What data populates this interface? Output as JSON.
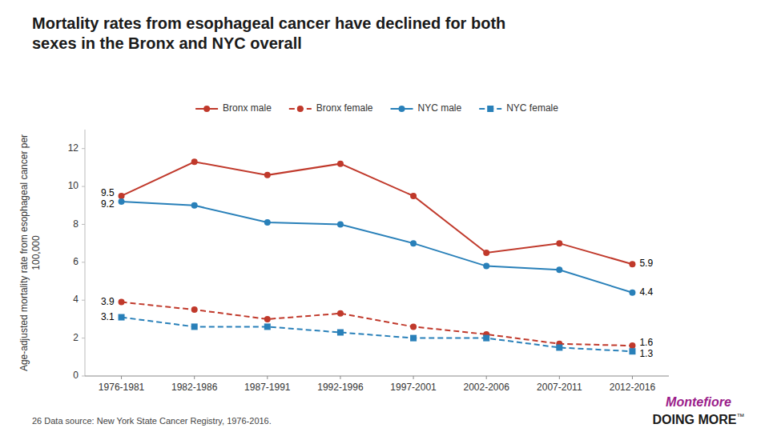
{
  "chart_data": {
    "type": "line",
    "title": "Mortality rates from esophageal cancer have declined for both\nsexes in the Bronx and NYC overall",
    "y_label": "Age-adjusted mortality rate from esophageal cancer per\n100,000",
    "categories": [
      "1976-1981",
      "1982-1986",
      "1987-1991",
      "1992-1996",
      "1997-2001",
      "2002-2006",
      "2007-2011",
      "2012-2016"
    ],
    "series": [
      {
        "name": "Bronx male",
        "color": "#c0392b",
        "line_style": "solid",
        "marker": "circle",
        "values": [
          9.5,
          11.3,
          10.6,
          11.2,
          9.5,
          6.5,
          7.0,
          5.9
        ],
        "value_labels": [
          "9.5",
          null,
          null,
          null,
          null,
          null,
          null,
          "5.9"
        ]
      },
      {
        "name": "Bronx female",
        "color": "#c0392b",
        "line_style": "dashed",
        "marker": "circle",
        "values": [
          3.9,
          3.5,
          3.0,
          3.3,
          2.6,
          2.2,
          1.7,
          1.6
        ],
        "value_labels": [
          "3.9",
          null,
          null,
          null,
          null,
          null,
          null,
          "1.6"
        ]
      },
      {
        "name": "NYC male",
        "color": "#2980b9",
        "line_style": "solid",
        "marker": "circle",
        "values": [
          9.2,
          9.0,
          8.1,
          8.0,
          7.0,
          5.8,
          5.6,
          4.4
        ],
        "value_labels": [
          "9.2",
          null,
          null,
          null,
          null,
          null,
          null,
          "4.4"
        ]
      },
      {
        "name": "NYC female",
        "color": "#2980b9",
        "line_style": "dashed",
        "marker": "square",
        "values": [
          3.1,
          2.6,
          2.6,
          2.3,
          2.0,
          2.0,
          1.5,
          1.3
        ],
        "value_labels": [
          "3.1",
          null,
          null,
          null,
          null,
          null,
          null,
          "1.3"
        ]
      }
    ],
    "ylim": [
      0,
      13
    ],
    "yticks": [
      0,
      2,
      4,
      6,
      8,
      10,
      12
    ],
    "grid": false,
    "legend": "top",
    "annotations": [
      "26  Data source: New York State Cancer Registry, 1976-2016.",
      "Montefiore",
      "DOING MORE",
      "™"
    ]
  }
}
